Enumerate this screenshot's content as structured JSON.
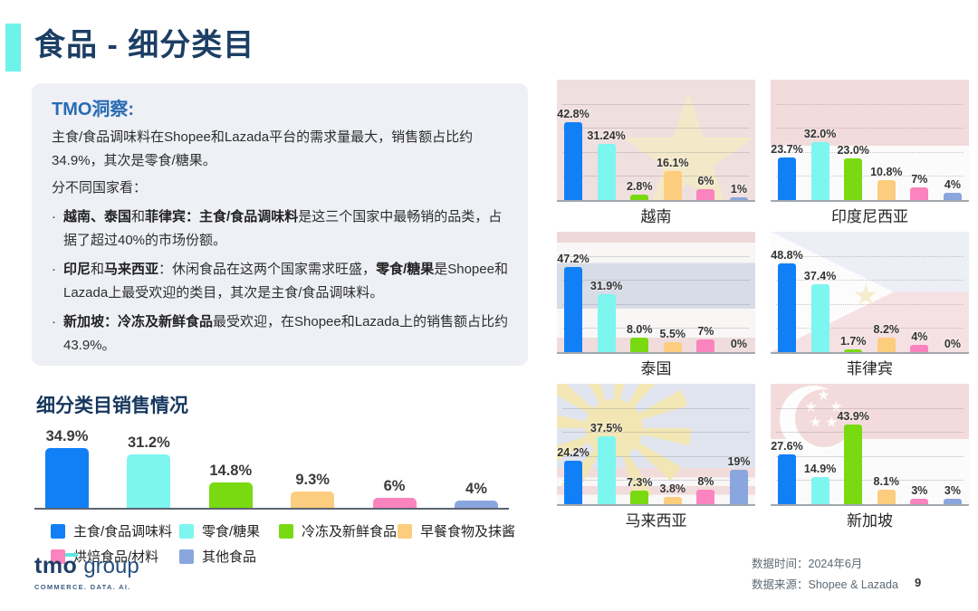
{
  "palette": {
    "accent_cyan": "#6ff2ea",
    "title_navy": "#1c3e64",
    "insight_blue": "#2a6bb4",
    "series_colors": [
      "#1180f6",
      "#7df6ef",
      "#79da12",
      "#fccd7e",
      "#fb84be",
      "#8aa6de"
    ]
  },
  "header": {
    "title": "食品 - 细分类目"
  },
  "insight": {
    "title": "TMO洞察:",
    "paragraphs": [
      "主食/食品调味料在Shopee和Lazada平台的需求量最大，销售额占比约34.9%，其次是零食/糖果。",
      "分不同国家看："
    ],
    "bullet_marker": "·",
    "bullets": [
      {
        "segments": [
          {
            "t": "越南、泰国",
            "b": true
          },
          {
            "t": "和",
            "b": false
          },
          {
            "t": "菲律宾：",
            "b": true
          },
          {
            "t": "主食/食品调味料",
            "b": true
          },
          {
            "t": "是这三个国家中最畅销的品类，占据了超过40%的市场份额。",
            "b": false
          }
        ]
      },
      {
        "segments": [
          {
            "t": "印尼",
            "b": true
          },
          {
            "t": "和",
            "b": false
          },
          {
            "t": "马来西亚",
            "b": true
          },
          {
            "t": "：休闲食品在这两个国家需求旺盛，",
            "b": false
          },
          {
            "t": "零食/糖果",
            "b": true
          },
          {
            "t": "是Shopee和Lazada上最受欢迎的类目，其次是主食/食品调味料。",
            "b": false
          }
        ]
      },
      {
        "segments": [
          {
            "t": "新加坡：冷冻及新鲜食品",
            "b": true
          },
          {
            "t": "最受欢迎，在Shopee和Lazada上的销售额占比约43.9%。",
            "b": false
          }
        ]
      }
    ]
  },
  "legend": {
    "items": [
      {
        "label": "主食/食品调味料",
        "color": "#1180f6"
      },
      {
        "label": "零食/糖果",
        "color": "#7df6ef"
      },
      {
        "label": "冷冻及新鲜食品",
        "color": "#79da12"
      },
      {
        "label": "早餐食物及抹酱",
        "color": "#fccd7e"
      },
      {
        "label": "烘焙食品/材料",
        "color": "#fb84be"
      },
      {
        "label": "其他食品",
        "color": "#8aa6de"
      }
    ]
  },
  "chart_data": [
    {
      "type": "bar",
      "title": "细分类目销售情况",
      "categories": [
        "主食/食品调味料",
        "零食/糖果",
        "冷冻及新鲜食品",
        "早餐食物及抹酱",
        "烘焙食品/材料",
        "其他食品"
      ],
      "values": [
        34.9,
        31.2,
        14.8,
        9.3,
        6,
        4
      ],
      "labels": [
        "34.9%",
        "31.2%",
        "14.8%",
        "9.3%",
        "6%",
        "4%"
      ],
      "ylim": [
        0,
        40
      ],
      "grid": false,
      "legend_position": "bottom"
    },
    {
      "type": "bar",
      "title": "越南",
      "flag": "vietnam",
      "categories": [
        "主食/食品调味料",
        "零食/糖果",
        "冷冻及新鲜食品",
        "早餐食物及抹酱",
        "烘焙食品/材料",
        "其他食品"
      ],
      "values": [
        42.8,
        31.24,
        2.8,
        16.1,
        6,
        1
      ],
      "labels": [
        "42.8%",
        "31.24%",
        "2.8%",
        "16.1%",
        "6%",
        "1%"
      ],
      "ylim": [
        0,
        55
      ],
      "grid": true
    },
    {
      "type": "bar",
      "title": "印度尼西亚",
      "flag": "indonesia",
      "categories": [
        "主食/食品调味料",
        "零食/糖果",
        "冷冻及新鲜食品",
        "早餐食物及抹酱",
        "烘焙食品/材料",
        "其他食品"
      ],
      "values": [
        23.7,
        32.0,
        23.0,
        10.8,
        7,
        4
      ],
      "labels": [
        "23.7%",
        "32.0%",
        "23.0%",
        "10.8%",
        "7%",
        "4%"
      ],
      "ylim": [
        0,
        55
      ],
      "grid": true
    },
    {
      "type": "bar",
      "title": "泰国",
      "flag": "thailand",
      "categories": [
        "主食/食品调味料",
        "零食/糖果",
        "冷冻及新鲜食品",
        "早餐食物及抹酱",
        "烘焙食品/材料",
        "其他食品"
      ],
      "values": [
        47.2,
        31.9,
        8.0,
        5.5,
        7,
        0
      ],
      "labels": [
        "47.2%",
        "31.9%",
        "8.0%",
        "5.5%",
        "7%",
        "0%"
      ],
      "ylim": [
        0,
        55
      ],
      "grid": true
    },
    {
      "type": "bar",
      "title": "菲律宾",
      "flag": "philippines",
      "categories": [
        "主食/食品调味料",
        "零食/糖果",
        "冷冻及新鲜食品",
        "早餐食物及抹酱",
        "烘焙食品/材料",
        "其他食品"
      ],
      "values": [
        48.8,
        37.4,
        1.7,
        8.2,
        4,
        0
      ],
      "labels": [
        "48.8%",
        "37.4%",
        "1.7%",
        "8.2%",
        "4%",
        "0%"
      ],
      "ylim": [
        0,
        55
      ],
      "grid": true
    },
    {
      "type": "bar",
      "title": "马来西亚",
      "flag": "malaysia",
      "categories": [
        "主食/食品调味料",
        "零食/糖果",
        "冷冻及新鲜食品",
        "早餐食物及抹酱",
        "烘焙食品/材料",
        "其他食品"
      ],
      "values": [
        24.2,
        37.5,
        7.3,
        3.8,
        8,
        19
      ],
      "labels": [
        "24.2%",
        "37.5%",
        "7.3%",
        "3.8%",
        "8%",
        "19%"
      ],
      "ylim": [
        0,
        55
      ],
      "grid": true
    },
    {
      "type": "bar",
      "title": "新加坡",
      "flag": "singapore",
      "categories": [
        "主食/食品调味料",
        "零食/糖果",
        "冷冻及新鲜食品",
        "早餐食物及抹酱",
        "烘焙食品/材料",
        "其他食品"
      ],
      "values": [
        27.6,
        14.9,
        43.9,
        8.1,
        3,
        3
      ],
      "labels": [
        "27.6%",
        "14.9%",
        "43.9%",
        "8.1%",
        "3%",
        "3%"
      ],
      "ylim": [
        0,
        55
      ],
      "grid": true
    }
  ],
  "footer": {
    "logo_tmo": "tmo",
    "logo_group": "group",
    "logo_tagline": "COMMERCE. DATA. AI.",
    "data_time_label": "数据时间：",
    "data_time_value": "2024年6月",
    "data_source_label": "数据来源：",
    "data_source_value": "Shopee & Lazada",
    "page_number": "9"
  }
}
